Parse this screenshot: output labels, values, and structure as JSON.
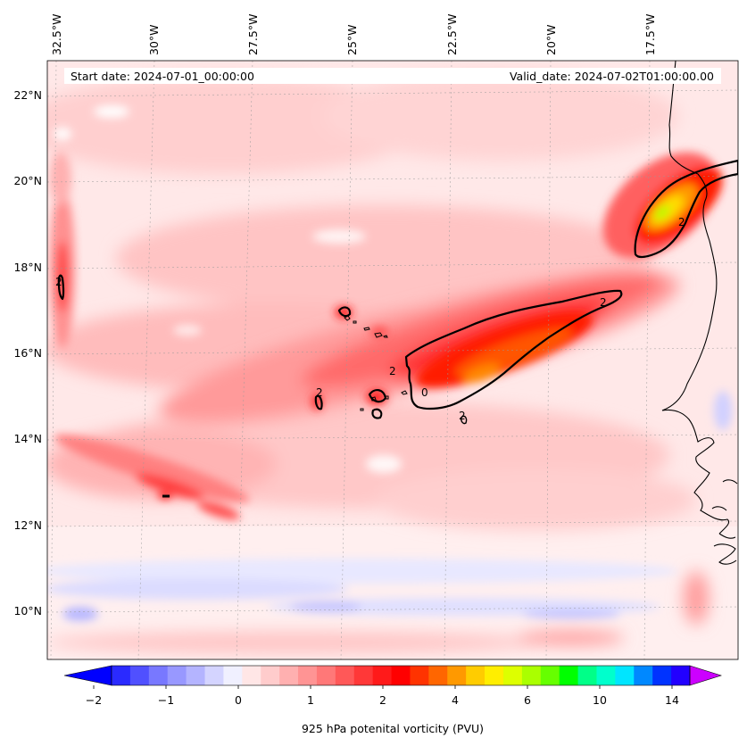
{
  "map": {
    "start_label": "Start date: 2024-07-01_00:00:00",
    "valid_label": "Valid_date: 2024-07-02T01:00:00.00",
    "lon_labels": [
      "32.5°W",
      "30°W",
      "27.5°W",
      "25°W",
      "22.5°W",
      "20°W",
      "17.5°W"
    ],
    "lat_labels": [
      "22°N",
      "20°N",
      "18°N",
      "16°N",
      "14°N",
      "12°N",
      "10°N"
    ],
    "contour_label": "2",
    "contour_label_zero": "0"
  },
  "colorbar": {
    "label": "925 hPa potenital vorticity (PVU)",
    "tick_labels": [
      "−2",
      "−1",
      "0",
      "1",
      "2",
      "4",
      "6",
      "10",
      "14"
    ],
    "colors": [
      "#0000ff",
      "#2a2aff",
      "#5050ff",
      "#7878ff",
      "#9898ff",
      "#b4b4ff",
      "#d4d4ff",
      "#f0f0ff",
      "#ffe6e6",
      "#ffcccc",
      "#ffb0b0",
      "#ff9494",
      "#ff7878",
      "#ff5858",
      "#ff3838",
      "#ff1a1a",
      "#ff0000",
      "#ff3300",
      "#ff6600",
      "#ff9900",
      "#ffcc00",
      "#ffee00",
      "#ddff00",
      "#aaff00",
      "#66ff00",
      "#00ff00",
      "#00ff88",
      "#00ffcc",
      "#00e5ff",
      "#0088ff",
      "#0033ff",
      "#2200ff",
      "#9900ff"
    ],
    "under_color": "#0000ff",
    "over_color": "#cc00ff"
  },
  "colors": {
    "coastline": "#000000",
    "contour": "#000000",
    "gridline": "#999999"
  }
}
